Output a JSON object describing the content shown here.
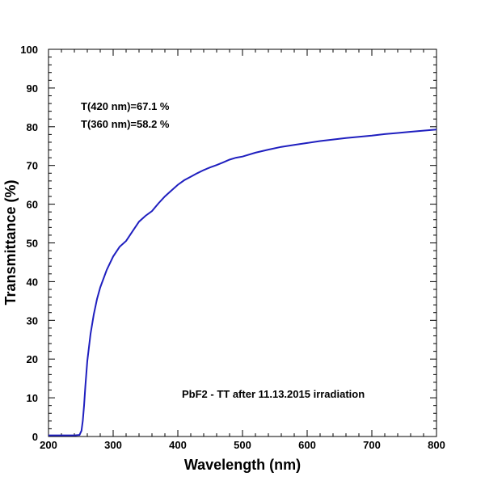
{
  "chart_data": {
    "type": "line",
    "title": "",
    "xlabel": "Wavelength (nm)",
    "ylabel": "Transmittance (%)",
    "xlim": [
      200,
      800
    ],
    "ylim": [
      0,
      100
    ],
    "x_ticks": [
      200,
      300,
      400,
      500,
      600,
      700,
      800
    ],
    "y_ticks": [
      0,
      10,
      20,
      30,
      40,
      50,
      60,
      70,
      80,
      90,
      100
    ],
    "grid": false,
    "line_color": "#1f1fbf",
    "annotations": [
      "T(420 nm)=67.1 %",
      "T(360 nm)=58.2 %",
      "PbF2 - TT after 11.13.2015 irradiation"
    ],
    "series": [
      {
        "x": [
          200,
          240,
          248,
          251,
          253,
          255,
          257,
          260,
          265,
          270,
          275,
          280,
          290,
          300,
          310,
          320,
          330,
          340,
          350,
          360,
          370,
          380,
          390,
          400,
          410,
          420,
          430,
          440,
          450,
          460,
          470,
          480,
          490,
          500,
          520,
          540,
          560,
          580,
          600,
          620,
          640,
          660,
          680,
          700,
          720,
          740,
          760,
          780,
          800
        ],
        "y": [
          0.3,
          0.3,
          0.4,
          1.5,
          4,
          8,
          13,
          19.5,
          26.5,
          31.5,
          35.5,
          38.5,
          43,
          46.5,
          49,
          50.5,
          53,
          55.5,
          57,
          58.2,
          60.2,
          62,
          63.5,
          65,
          66.2,
          67.1,
          68,
          68.8,
          69.5,
          70.1,
          70.8,
          71.5,
          72,
          72.3,
          73.3,
          74.1,
          74.8,
          75.3,
          75.8,
          76.3,
          76.7,
          77.1,
          77.4,
          77.7,
          78.1,
          78.4,
          78.7,
          79.0,
          79.3
        ]
      }
    ]
  }
}
